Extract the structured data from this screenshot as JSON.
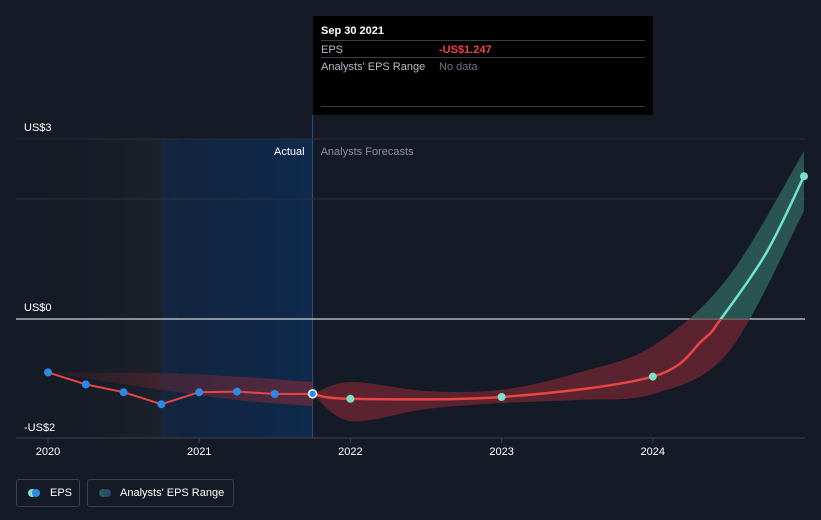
{
  "tooltip": {
    "date": "Sep 30 2021",
    "eps_label": "EPS",
    "eps_value": "-US$1.247",
    "range_label": "Analysts' EPS Range",
    "range_value": "No data"
  },
  "regions": {
    "actual_label": "Actual",
    "forecast_label": "Analysts Forecasts"
  },
  "legend": {
    "eps_label": "EPS",
    "range_label": "Analysts' EPS Range"
  },
  "colors": {
    "background": "#151b26",
    "actual_line": "#e84545",
    "actual_dot": "#2b8ae6",
    "forecast_dot": "#7fe0c9",
    "forecast_line_positive": "#6fe4cf",
    "range_negative": "#8a2a35",
    "range_positive": "#2e5e5a",
    "highlight_band": "#0f2a4d"
  },
  "chart_data": {
    "type": "line",
    "y_axis": {
      "ticks": [
        {
          "value": 3,
          "label": "US$3"
        },
        {
          "value": 0,
          "label": "US$0"
        },
        {
          "value": -2,
          "label": "-US$2"
        }
      ],
      "range": [
        -2,
        3
      ]
    },
    "x_axis": {
      "ticks": [
        {
          "value": 2020,
          "label": "2020"
        },
        {
          "value": 2021,
          "label": "2021"
        },
        {
          "value": 2022,
          "label": "2022"
        },
        {
          "value": 2023,
          "label": "2023"
        },
        {
          "value": 2024,
          "label": "2024"
        }
      ],
      "range": [
        2019.8,
        2025.0
      ]
    },
    "highlight_date": 2021.75,
    "series": [
      {
        "name": "EPS",
        "kind": "actual",
        "points": [
          {
            "x": 2020.0,
            "y": -0.89
          },
          {
            "x": 2020.25,
            "y": -1.09
          },
          {
            "x": 2020.5,
            "y": -1.22
          },
          {
            "x": 2020.75,
            "y": -1.42
          },
          {
            "x": 2021.0,
            "y": -1.22
          },
          {
            "x": 2021.25,
            "y": -1.21
          },
          {
            "x": 2021.5,
            "y": -1.25
          },
          {
            "x": 2021.75,
            "y": -1.247
          }
        ]
      },
      {
        "name": "EPS Forecast",
        "kind": "forecast",
        "points": [
          {
            "x": 2021.75,
            "y": -1.247
          },
          {
            "x": 2022.0,
            "y": -1.33
          },
          {
            "x": 2023.0,
            "y": -1.3
          },
          {
            "x": 2024.0,
            "y": -0.96
          },
          {
            "x": 2024.33,
            "y": -0.35
          },
          {
            "x": 2024.45,
            "y": 0.0
          },
          {
            "x": 2024.75,
            "y": 1.1
          },
          {
            "x": 2025.0,
            "y": 2.38
          }
        ],
        "markers": [
          2022.0,
          2023.0,
          2024.0,
          2025.0
        ]
      }
    ],
    "ranges": [
      {
        "name": "Analysts' EPS Range (past)",
        "points": [
          {
            "x": 2020.0,
            "low": -0.89,
            "high": -0.89
          },
          {
            "x": 2020.75,
            "low": -1.18,
            "high": -0.9
          },
          {
            "x": 2021.25,
            "low": -1.35,
            "high": -0.96
          },
          {
            "x": 2021.75,
            "low": -1.45,
            "high": -1.05
          }
        ]
      },
      {
        "name": "Analysts' EPS Range (forecast)",
        "points": [
          {
            "x": 2021.75,
            "low": -1.25,
            "high": -1.25
          },
          {
            "x": 2022.0,
            "low": -1.7,
            "high": -1.05
          },
          {
            "x": 2022.5,
            "low": -1.5,
            "high": -1.2
          },
          {
            "x": 2023.0,
            "low": -1.4,
            "high": -1.18
          },
          {
            "x": 2023.5,
            "low": -1.35,
            "high": -0.9
          },
          {
            "x": 2024.0,
            "low": -1.25,
            "high": -0.45
          },
          {
            "x": 2024.5,
            "low": -0.55,
            "high": 0.7
          },
          {
            "x": 2025.0,
            "low": 1.8,
            "high": 2.8
          }
        ]
      }
    ]
  }
}
